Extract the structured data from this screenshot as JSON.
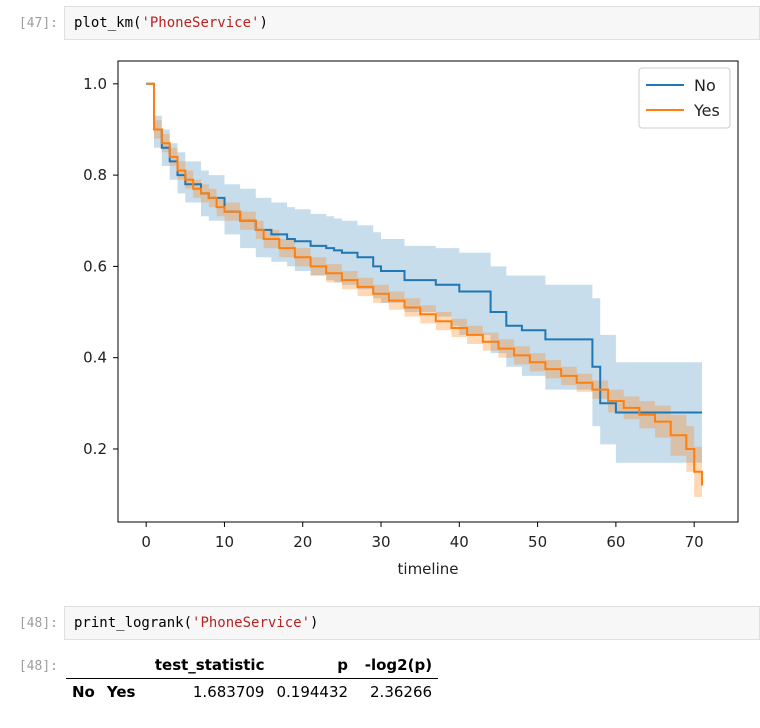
{
  "cell47": {
    "prompt": "[47]:",
    "code_prefix": "plot_km(",
    "code_string": "'PhoneService'",
    "code_suffix": ")"
  },
  "cell48": {
    "prompt_in": "[48]:",
    "code_prefix": "print_logrank(",
    "code_string": "'PhoneService'",
    "code_suffix": ")",
    "prompt_out": "[48]:",
    "table": {
      "columns": [
        "test_statistic",
        "p",
        "-log2(p)"
      ],
      "rows": [
        {
          "index": [
            "No",
            "Yes"
          ],
          "values": [
            "1.683709",
            "0.194432",
            "2.36266"
          ]
        }
      ]
    }
  },
  "chart_data": {
    "type": "line",
    "xlabel": "timeline",
    "ylabel": "",
    "xlim": [
      -3.6,
      75.6
    ],
    "ylim": [
      0.04,
      1.05
    ],
    "xticks": [
      0,
      10,
      20,
      30,
      40,
      50,
      60,
      70
    ],
    "yticks": [
      0.2,
      0.4,
      0.6,
      0.8,
      1.0
    ],
    "legend_position": "top-right",
    "grid": false,
    "series": [
      {
        "name": "No",
        "color": "#1f77b4",
        "x": [
          0,
          1,
          2,
          3,
          4,
          5,
          7,
          8,
          10,
          12,
          14,
          16,
          18,
          19,
          21,
          23,
          24,
          25,
          27,
          29,
          30,
          33,
          37,
          39,
          40,
          44,
          46,
          48,
          51,
          57,
          58,
          60,
          71
        ],
        "y": [
          1.0,
          0.9,
          0.86,
          0.83,
          0.8,
          0.78,
          0.76,
          0.75,
          0.72,
          0.7,
          0.68,
          0.67,
          0.66,
          0.655,
          0.645,
          0.64,
          0.635,
          0.63,
          0.62,
          0.6,
          0.59,
          0.57,
          0.56,
          0.56,
          0.545,
          0.5,
          0.47,
          0.46,
          0.44,
          0.38,
          0.3,
          0.28,
          0.28
        ],
        "ci_upper": [
          1.0,
          0.93,
          0.9,
          0.87,
          0.85,
          0.83,
          0.81,
          0.8,
          0.78,
          0.77,
          0.75,
          0.74,
          0.73,
          0.725,
          0.715,
          0.71,
          0.705,
          0.7,
          0.69,
          0.675,
          0.66,
          0.645,
          0.64,
          0.64,
          0.63,
          0.6,
          0.58,
          0.58,
          0.56,
          0.53,
          0.45,
          0.39,
          0.39
        ],
        "ci_lower": [
          1.0,
          0.86,
          0.82,
          0.79,
          0.76,
          0.74,
          0.71,
          0.7,
          0.67,
          0.64,
          0.62,
          0.61,
          0.6,
          0.59,
          0.58,
          0.57,
          0.565,
          0.56,
          0.55,
          0.53,
          0.52,
          0.5,
          0.49,
          0.47,
          0.45,
          0.41,
          0.38,
          0.36,
          0.33,
          0.25,
          0.21,
          0.17,
          0.17
        ]
      },
      {
        "name": "Yes",
        "color": "#ff7f0e",
        "x": [
          0,
          1,
          2,
          3,
          4,
          5,
          6,
          7,
          8,
          9,
          10,
          12,
          14,
          15,
          17,
          19,
          21,
          23,
          25,
          27,
          29,
          31,
          33,
          35,
          37,
          39,
          41,
          43,
          45,
          47,
          49,
          51,
          53,
          55,
          57,
          59,
          61,
          63,
          65,
          67,
          69,
          70,
          71
        ],
        "y": [
          1.0,
          0.9,
          0.87,
          0.84,
          0.81,
          0.79,
          0.77,
          0.76,
          0.75,
          0.73,
          0.72,
          0.7,
          0.68,
          0.66,
          0.64,
          0.62,
          0.6,
          0.585,
          0.57,
          0.555,
          0.54,
          0.525,
          0.51,
          0.495,
          0.48,
          0.465,
          0.45,
          0.435,
          0.42,
          0.405,
          0.39,
          0.375,
          0.36,
          0.345,
          0.33,
          0.305,
          0.29,
          0.275,
          0.26,
          0.23,
          0.2,
          0.15,
          0.12
        ],
        "ci_upper": [
          1.0,
          0.92,
          0.89,
          0.86,
          0.83,
          0.81,
          0.79,
          0.78,
          0.77,
          0.75,
          0.74,
          0.72,
          0.7,
          0.68,
          0.66,
          0.64,
          0.62,
          0.605,
          0.59,
          0.575,
          0.56,
          0.545,
          0.53,
          0.515,
          0.5,
          0.485,
          0.47,
          0.455,
          0.44,
          0.425,
          0.41,
          0.395,
          0.38,
          0.365,
          0.35,
          0.33,
          0.315,
          0.305,
          0.295,
          0.275,
          0.25,
          0.205,
          0.18
        ],
        "ci_lower": [
          1.0,
          0.88,
          0.85,
          0.82,
          0.79,
          0.77,
          0.75,
          0.74,
          0.73,
          0.71,
          0.7,
          0.68,
          0.66,
          0.64,
          0.62,
          0.6,
          0.58,
          0.565,
          0.55,
          0.535,
          0.52,
          0.505,
          0.49,
          0.475,
          0.46,
          0.445,
          0.43,
          0.415,
          0.4,
          0.385,
          0.37,
          0.355,
          0.34,
          0.325,
          0.31,
          0.28,
          0.265,
          0.245,
          0.225,
          0.185,
          0.15,
          0.095,
          0.06
        ]
      }
    ]
  }
}
